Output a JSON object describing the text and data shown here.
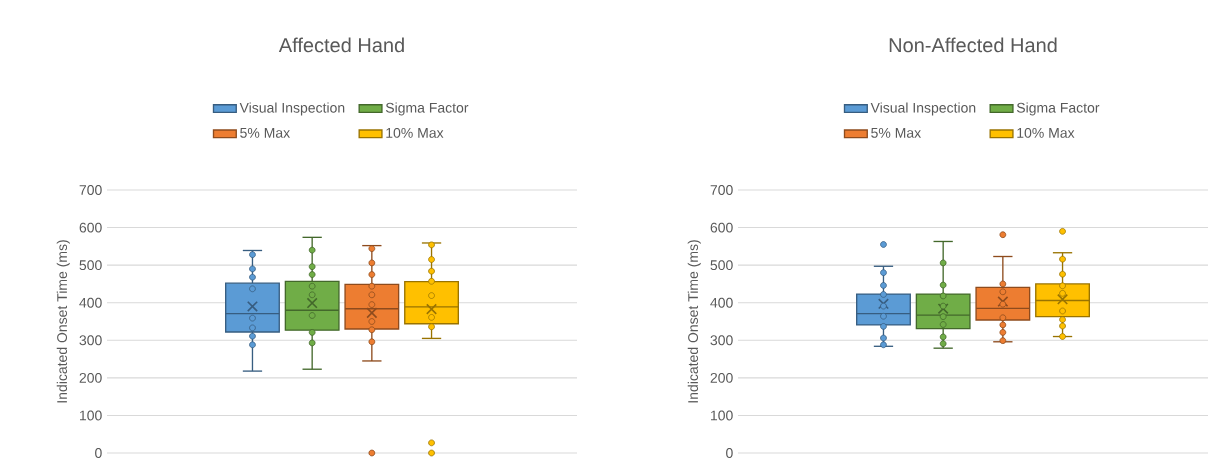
{
  "chart_data": [
    {
      "type": "box",
      "title": "Affected Hand",
      "ylabel": "Indicated Onset Time (ms)",
      "ylim": [
        0,
        700
      ],
      "yticks": [
        0,
        100,
        200,
        300,
        400,
        500,
        600,
        700
      ],
      "grid": "y",
      "legend": "top",
      "marker": "circle",
      "categories": [
        null
      ],
      "series": [
        {
          "name": "Visual Inspection",
          "color": "#5b9bd5",
          "boxes": [
            {
              "low": 218,
              "q1": 322,
              "median": 371,
              "q3": 452,
              "high": 539,
              "mean": 390
            }
          ]
        },
        {
          "name": "Sigma Factor",
          "color": "#70ad47",
          "boxes": [
            {
              "low": 223,
              "q1": 327,
              "median": 380,
              "q3": 457,
              "high": 574,
              "mean": 399
            }
          ]
        },
        {
          "name": "5% Max",
          "color": "#ed7d31",
          "boxes": [
            {
              "low": 245,
              "q1": 330,
              "median": 384,
              "q3": 449,
              "high": 552,
              "mean": 373,
              "outliers": [
                0
              ]
            }
          ]
        },
        {
          "name": "10% Max",
          "color": "#ffc000",
          "boxes": [
            {
              "low": 305,
              "q1": 344,
              "median": 389,
              "q3": 456,
              "high": 559,
              "mean": 383,
              "outliers": [
                27,
                0
              ]
            }
          ]
        },
        {
          "type": "scatter",
          "color": "#5b9bd5",
          "x": [
            null,
            null,
            null,
            null,
            null,
            null,
            null,
            null
          ],
          "values": [
            528,
            490,
            468,
            437,
            359,
            333,
            311,
            288
          ]
        },
        {
          "type": "scatter",
          "color": "#70ad47",
          "x": [
            null,
            null,
            null,
            null,
            null,
            null,
            null,
            null
          ],
          "values": [
            540,
            496,
            475,
            444,
            421,
            366,
            321,
            293
          ]
        },
        {
          "type": "scatter",
          "color": "#ed7d31",
          "x": [
            null,
            null,
            null,
            null,
            null,
            null,
            null,
            null,
            null
          ],
          "values": [
            544,
            506,
            475,
            444,
            421,
            395,
            350,
            328,
            296
          ]
        },
        {
          "type": "scatter",
          "color": "#ffc000",
          "x": [
            null,
            null,
            null,
            null,
            null,
            null,
            null
          ],
          "values": [
            554,
            515,
            484,
            457,
            419,
            361,
            336
          ]
        }
      ]
    },
    {
      "type": "box",
      "title": "Non-Affected Hand",
      "ylabel": "Indicated Onset Time (ms)",
      "ylim": [
        0,
        700
      ],
      "yticks": [
        0,
        100,
        200,
        300,
        400,
        500,
        600,
        700
      ],
      "grid": "y",
      "legend": "top",
      "marker": "circle",
      "categories": [
        null
      ],
      "series": [
        {
          "name": "Visual Inspection",
          "color": "#5b9bd5",
          "boxes": [
            {
              "low": 284,
              "q1": 341,
              "median": 371,
              "q3": 423,
              "high": 497,
              "mean": 397,
              "outliers": [
                555
              ]
            }
          ]
        },
        {
          "name": "Sigma Factor",
          "color": "#70ad47",
          "boxes": [
            {
              "low": 279,
              "q1": 331,
              "median": 367,
              "q3": 423,
              "high": 563,
              "mean": 384
            }
          ]
        },
        {
          "name": "5% Max",
          "color": "#ed7d31",
          "boxes": [
            {
              "low": 296,
              "q1": 354,
              "median": 385,
              "q3": 441,
              "high": 523,
              "mean": 403,
              "outliers": [
                581
              ]
            }
          ]
        },
        {
          "name": "10% Max",
          "color": "#ffc000",
          "boxes": [
            {
              "low": 310,
              "q1": 363,
              "median": 406,
              "q3": 450,
              "high": 533,
              "mean": 409,
              "outliers": [
                590
              ]
            }
          ]
        },
        {
          "type": "scatter",
          "color": "#5b9bd5",
          "x": [
            null,
            null,
            null,
            null,
            null,
            null,
            null,
            null
          ],
          "values": [
            480,
            446,
            422,
            391,
            364,
            337,
            306,
            288
          ]
        },
        {
          "type": "scatter",
          "color": "#70ad47",
          "x": [
            null,
            null,
            null,
            null,
            null,
            null,
            null,
            null
          ],
          "values": [
            506,
            447,
            418,
            391,
            363,
            342,
            309,
            291
          ]
        },
        {
          "type": "scatter",
          "color": "#ed7d31",
          "x": [
            null,
            null,
            null,
            null,
            null,
            null,
            null
          ],
          "values": [
            450,
            429,
            396,
            360,
            341,
            321,
            299
          ]
        },
        {
          "type": "scatter",
          "color": "#ffc000",
          "x": [
            null,
            null,
            null,
            null,
            null,
            null,
            null,
            null
          ],
          "values": [
            516,
            476,
            445,
            425,
            378,
            355,
            338,
            310
          ]
        }
      ]
    }
  ]
}
